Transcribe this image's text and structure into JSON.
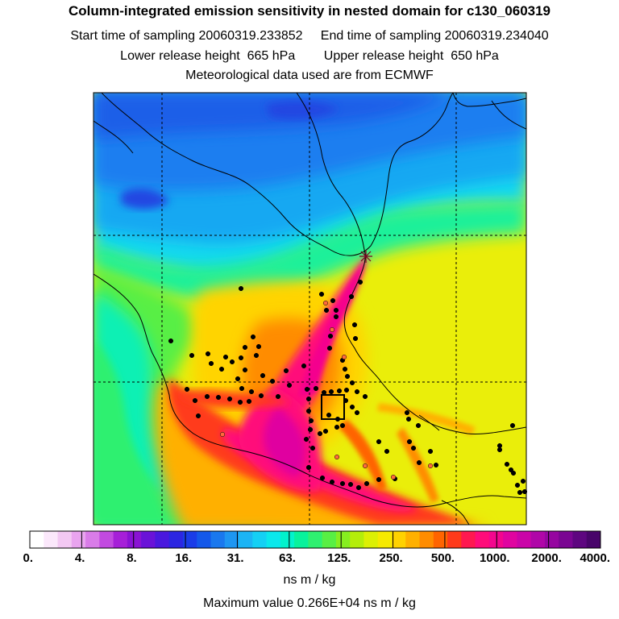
{
  "header": {
    "title": "Column-integrated emission sensitivity in nested domain for c130_060319",
    "line2": "Start time of sampling 20060319.233852     End time of sampling 20060319.234040",
    "line3": "Lower release height  665 hPa        Upper release height  650 hPa",
    "line4": "Meteorological data used are from ECMWF"
  },
  "chart_data": {
    "type": "heatmap",
    "title": "Column-integrated emission sensitivity in nested domain for c130_060319",
    "colorbar": {
      "tick_labels": [
        "0.",
        "4.",
        "8.",
        "16.",
        "31.",
        "63.",
        "125.",
        "250.",
        "500.",
        "1000.",
        "2000.",
        "4000."
      ],
      "tick_values": [
        0,
        4,
        8,
        16,
        31,
        63,
        125,
        250,
        500,
        1000,
        2000,
        4000
      ],
      "colors": [
        "#ffffff",
        "#fbe8fb",
        "#f3c8f3",
        "#e9a4ef",
        "#d97ce8",
        "#c24ae0",
        "#a61fd8",
        "#8a12d4",
        "#6a12d8",
        "#4a18de",
        "#2c26e2",
        "#1a3ce8",
        "#1458ea",
        "#1a78ee",
        "#1e96f2",
        "#1cb4f4",
        "#14d0f4",
        "#0ae8ec",
        "#02f2cc",
        "#08f29c",
        "#2ef070",
        "#58ef44",
        "#86ee20",
        "#b4ee0a",
        "#dcf004",
        "#f6ea00",
        "#ffd200",
        "#ffb000",
        "#ff8c00",
        "#ff6400",
        "#ff3a1a",
        "#ff1850",
        "#ff0c7a",
        "#f4068e",
        "#e004a0",
        "#ca04a8",
        "#b006a8",
        "#9606a0",
        "#7a0692",
        "#5e0680",
        "#48046a"
      ],
      "units": "ns m / kg"
    },
    "maximum_value": "0.266E+04",
    "grid": true
  },
  "footer": {
    "units_label": "ns m / kg",
    "max_label": "Maximum value  0.266E+04 ns m / kg"
  }
}
